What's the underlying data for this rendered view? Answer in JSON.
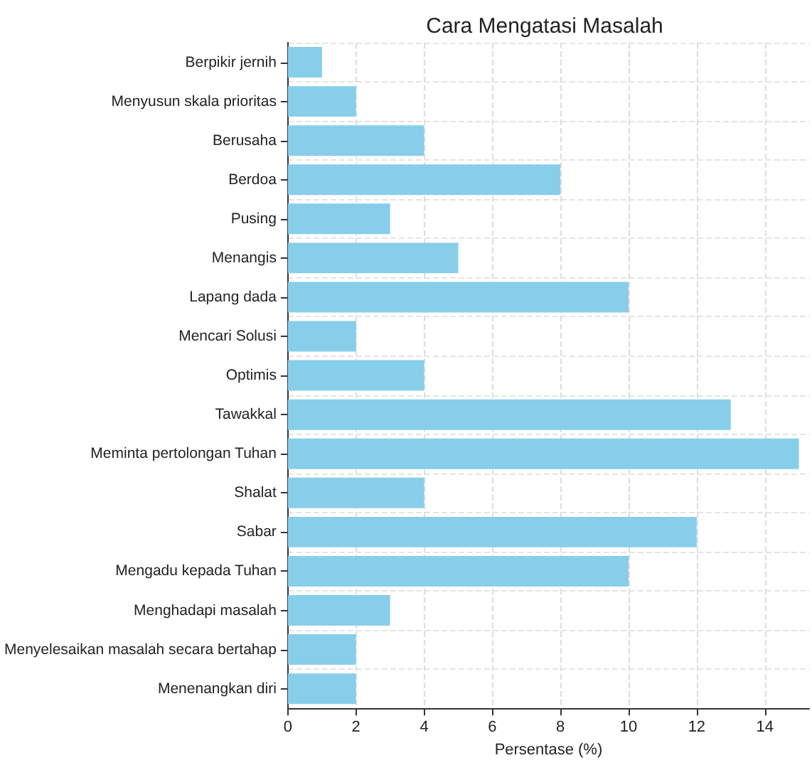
{
  "chart_data": {
    "type": "bar",
    "orientation": "horizontal",
    "title": "Cara Mengatasi Masalah",
    "xlabel": "Persentase (%)",
    "categories": [
      "Berpikir jernih",
      "Menyusun skala prioritas",
      "Berusaha",
      "Berdoa",
      "Pusing",
      "Menangis",
      "Lapang dada",
      "Mencari Solusi",
      "Optimis",
      "Tawakkal",
      "Meminta pertolongan Tuhan",
      "Shalat",
      "Sabar",
      "Mengadu kepada Tuhan",
      "Menghadapi masalah",
      "Menyelesaikan masalah secara bertahap",
      "Menenangkan diri"
    ],
    "values": [
      1,
      2,
      4,
      8,
      3,
      5,
      10,
      2,
      4,
      13,
      15,
      4,
      12,
      10,
      3,
      2,
      2
    ],
    "color": "#87ceeb",
    "xlim": [
      0,
      15.3
    ],
    "xticks": [
      0,
      2,
      4,
      6,
      8,
      10,
      12,
      14
    ],
    "grid": true
  }
}
